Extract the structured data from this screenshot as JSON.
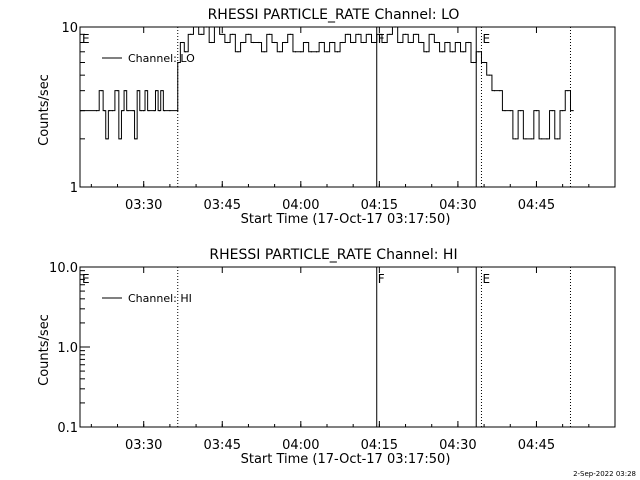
{
  "footer": {
    "timestamp": "2-Sep-2022 03:28"
  },
  "chart_data": [
    {
      "type": "line",
      "title": "RHESSI PARTICLE_RATE Channel: LO",
      "xlabel": "Start Time (17-Oct-17 03:17:50)",
      "ylabel": "Counts/sec",
      "yscale": "log",
      "ylim": [
        1,
        10
      ],
      "yticks": [
        {
          "v": 1,
          "label": "1"
        },
        {
          "v": 10,
          "label": "10"
        }
      ],
      "xlim": [
        "03:17:50",
        "05:00:00"
      ],
      "xticks": [
        "03:30",
        "03:45",
        "04:00",
        "04:15",
        "04:30",
        "04:45"
      ],
      "grid": false,
      "legend": {
        "position": "top-left",
        "entries": [
          "Channel: LO"
        ]
      },
      "markers": [
        {
          "time": "03:36:30",
          "style": "dotted",
          "label": ""
        },
        {
          "time": "04:14:30",
          "style": "solid",
          "label": "F"
        },
        {
          "time": "04:33:30",
          "style": "solid",
          "label": ""
        },
        {
          "time": "04:34:30",
          "style": "dotted",
          "label": "E"
        },
        {
          "time": "04:51:30",
          "style": "dotted",
          "label": ""
        }
      ],
      "corner_label": "E",
      "series": [
        {
          "name": "Channel: LO",
          "x": [
            "03:18:00",
            "03:21:00",
            "03:22:00",
            "03:22:30",
            "03:23:00",
            "03:23:30",
            "03:24:00",
            "03:25:00",
            "03:25:30",
            "03:26:00",
            "03:26:30",
            "03:27:00",
            "03:28:00",
            "03:28:30",
            "03:29:00",
            "03:29:30",
            "03:30:00",
            "03:30:30",
            "03:31:00",
            "03:32:00",
            "03:32:30",
            "03:33:00",
            "03:33:30",
            "03:34:00",
            "03:35:00",
            "03:36:30",
            "03:36:30",
            "03:37:30",
            "03:38:00",
            "03:39:00",
            "03:40:00",
            "03:41:00",
            "03:42:00",
            "03:43:00",
            "03:44:00",
            "03:45:00",
            "03:46:00",
            "03:47:00",
            "03:48:00",
            "03:49:00",
            "03:50:00",
            "03:51:00",
            "03:52:00",
            "03:53:00",
            "03:54:00",
            "03:55:00",
            "03:56:00",
            "03:57:00",
            "03:58:00",
            "03:59:00",
            "04:00:00",
            "04:01:00",
            "04:02:00",
            "04:03:00",
            "04:04:00",
            "04:05:00",
            "04:06:00",
            "04:07:00",
            "04:08:00",
            "04:09:00",
            "04:10:00",
            "04:11:00",
            "04:12:00",
            "04:13:00",
            "04:14:00",
            "04:15:00",
            "04:16:00",
            "04:17:00",
            "04:18:00",
            "04:19:00",
            "04:20:00",
            "04:21:00",
            "04:22:00",
            "04:23:00",
            "04:24:00",
            "04:25:00",
            "04:26:00",
            "04:27:00",
            "04:28:00",
            "04:29:00",
            "04:30:00",
            "04:31:00",
            "04:32:00",
            "04:33:00",
            "04:34:00",
            "04:35:00",
            "04:36:00",
            "04:37:00",
            "04:38:00",
            "04:39:00",
            "04:40:00",
            "04:41:00",
            "04:42:00",
            "04:43:00",
            "04:44:00",
            "04:45:00",
            "04:46:00",
            "04:47:00",
            "04:48:00",
            "04:49:00",
            "04:50:00",
            "04:51:00",
            "04:52:00"
          ],
          "values": [
            3,
            3,
            4,
            3,
            2,
            3,
            3,
            4,
            2,
            3,
            4,
            3,
            3,
            2,
            4,
            3,
            3,
            4,
            3,
            3,
            4,
            3,
            4,
            3,
            3,
            3,
            6,
            8,
            7,
            9,
            10,
            9,
            10,
            8,
            10,
            9,
            8,
            9,
            7,
            8,
            9,
            8,
            8,
            7,
            9,
            8,
            7,
            8,
            9,
            7,
            7,
            8,
            7,
            7,
            8,
            7,
            8,
            7,
            8,
            9,
            8,
            9,
            8,
            9,
            8,
            9,
            8,
            9,
            10,
            8,
            9,
            8,
            9,
            8,
            7,
            9,
            8,
            7,
            8,
            7,
            8,
            7,
            8,
            6,
            7,
            6,
            5,
            4,
            4,
            3,
            3,
            2,
            3,
            2,
            2,
            3,
            2,
            2,
            3,
            2,
            3,
            4,
            3
          ]
        }
      ]
    },
    {
      "type": "line",
      "title": "RHESSI PARTICLE_RATE Channel: HI",
      "xlabel": "Start Time (17-Oct-17 03:17:50)",
      "ylabel": "Counts/sec",
      "yscale": "log",
      "ylim": [
        0.1,
        10.0
      ],
      "yticks": [
        {
          "v": 0.1,
          "label": "0.1"
        },
        {
          "v": 1.0,
          "label": "1.0"
        },
        {
          "v": 10.0,
          "label": "10.0"
        }
      ],
      "xlim": [
        "03:17:50",
        "05:00:00"
      ],
      "xticks": [
        "03:30",
        "03:45",
        "04:00",
        "04:15",
        "04:30",
        "04:45"
      ],
      "grid": false,
      "legend": {
        "position": "top-left",
        "entries": [
          "Channel: HI"
        ]
      },
      "markers": [
        {
          "time": "03:36:30",
          "style": "dotted",
          "label": ""
        },
        {
          "time": "04:14:30",
          "style": "solid",
          "label": "F"
        },
        {
          "time": "04:33:30",
          "style": "solid",
          "label": ""
        },
        {
          "time": "04:34:30",
          "style": "dotted",
          "label": "E"
        },
        {
          "time": "04:51:30",
          "style": "dotted",
          "label": ""
        }
      ],
      "corner_label": "E",
      "series": [
        {
          "name": "Channel: HI",
          "x": [],
          "values": []
        }
      ]
    }
  ]
}
